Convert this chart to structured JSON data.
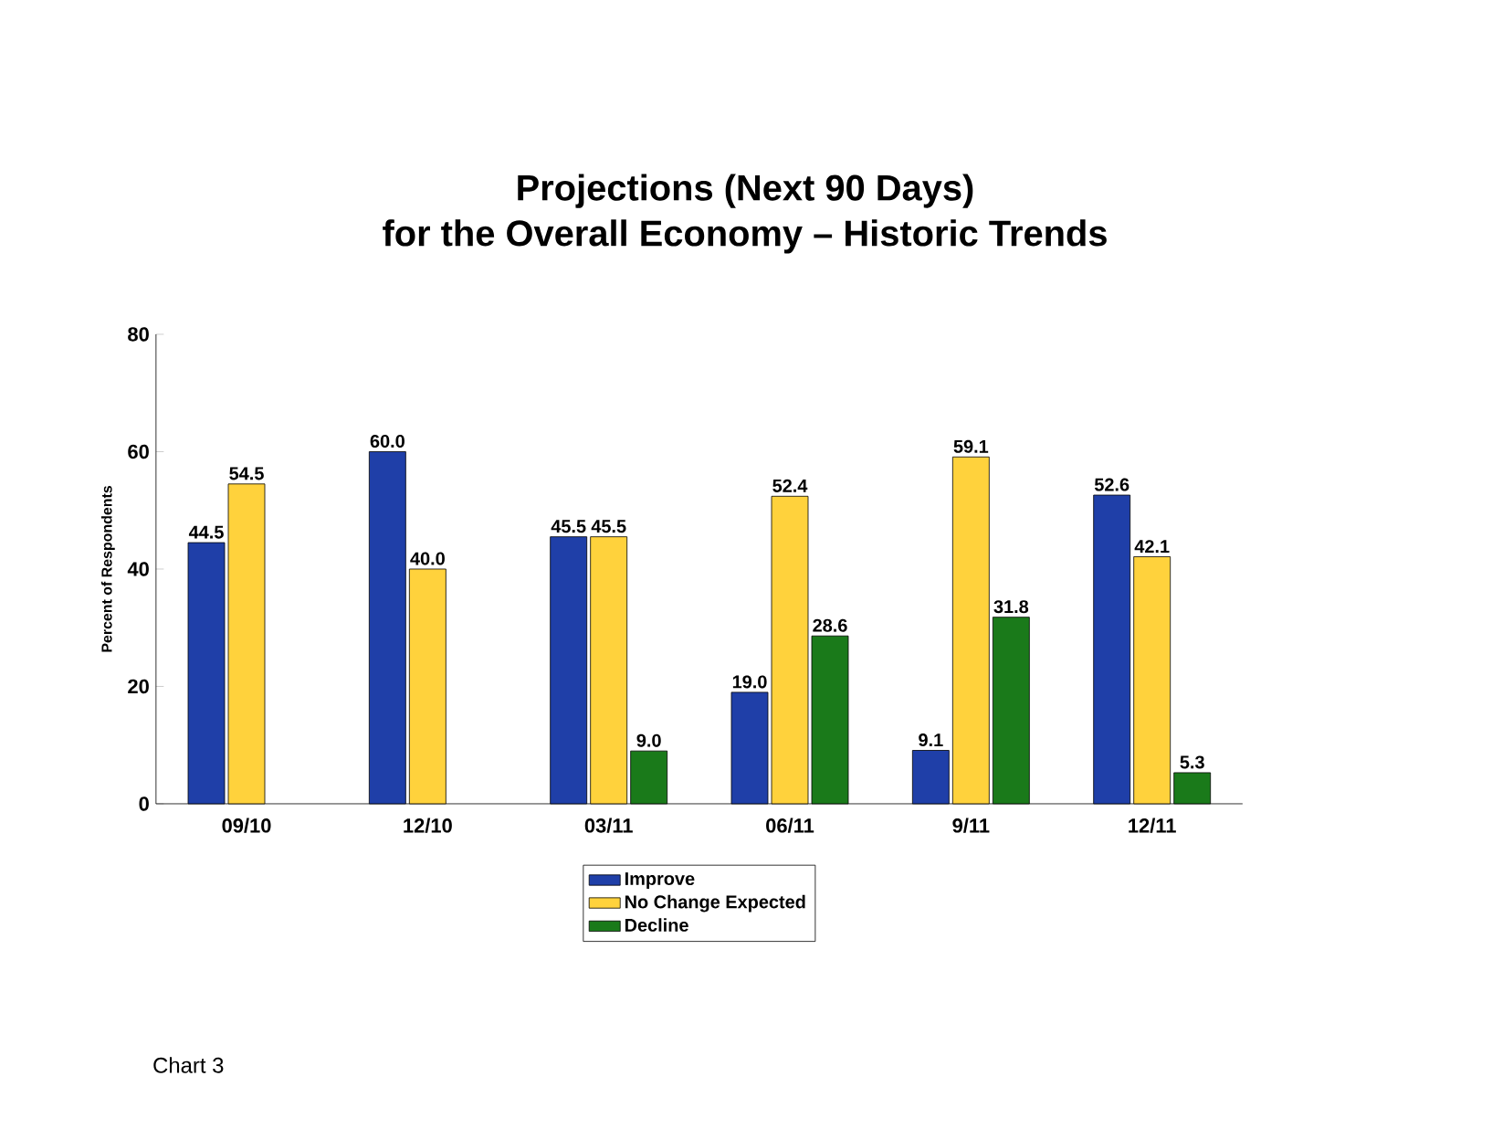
{
  "chart_data": {
    "type": "bar",
    "title": "Projections (Next 90 Days)\nfor the Overall Economy – Historic Trends",
    "ylabel": "Percent of Respondents",
    "categories": [
      "09/10",
      "12/10",
      "03/11",
      "06/11",
      "9/11",
      "12/11"
    ],
    "series": [
      {
        "name": "Improve",
        "color": "#1f3fa8",
        "values": [
          44.5,
          60.0,
          45.5,
          19.0,
          9.1,
          52.6
        ],
        "value_labels": [
          "44.5",
          "60.0",
          "45.5",
          "19.0",
          "9.1",
          "52.6"
        ]
      },
      {
        "name": "No Change Expected",
        "color": "#ffd23c",
        "values": [
          54.5,
          40.0,
          45.5,
          52.4,
          59.1,
          42.1
        ],
        "value_labels": [
          "54.5",
          "40.0",
          "45.5",
          "52.4",
          "59.1",
          "42.1"
        ]
      },
      {
        "name": "Decline",
        "color": "#1a7a1a",
        "values": [
          null,
          null,
          9.0,
          28.6,
          31.8,
          5.3
        ],
        "value_labels": [
          null,
          null,
          "9.0",
          "28.6",
          "31.8",
          "5.3"
        ]
      }
    ],
    "ylim": [
      0,
      80
    ],
    "yticks": [
      0,
      20,
      40,
      60,
      80
    ],
    "grid": false,
    "legend": "bottom",
    "annotations": [
      "Chart 3"
    ]
  }
}
